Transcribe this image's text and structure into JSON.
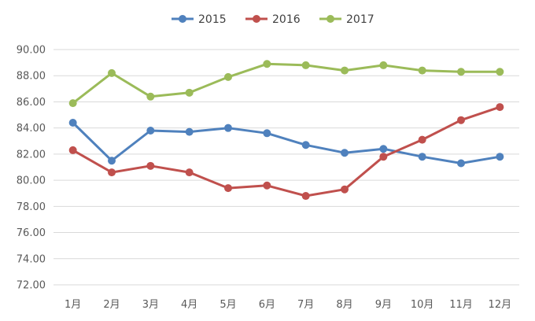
{
  "chart_data": {
    "type": "line",
    "categories": [
      "1月",
      "2月",
      "3月",
      "4月",
      "5月",
      "6月",
      "7月",
      "8月",
      "9月",
      "10月",
      "11月",
      "12月"
    ],
    "series": [
      {
        "name": "2015",
        "color": "#4f81bd",
        "values": [
          84.4,
          81.5,
          83.8,
          83.7,
          84.0,
          83.6,
          82.7,
          82.1,
          82.4,
          81.8,
          81.3,
          81.8
        ]
      },
      {
        "name": "2016",
        "color": "#c0504d",
        "values": [
          82.3,
          80.6,
          81.1,
          80.6,
          79.4,
          79.6,
          78.8,
          79.3,
          81.8,
          83.1,
          84.6,
          85.6
        ]
      },
      {
        "name": "2017",
        "color": "#9bbb59",
        "values": [
          85.9,
          88.2,
          86.4,
          86.7,
          87.9,
          88.9,
          88.8,
          88.4,
          88.8,
          88.4,
          88.3,
          88.3
        ]
      }
    ],
    "yticks": [
      "72.00",
      "74.00",
      "76.00",
      "78.00",
      "80.00",
      "82.00",
      "84.00",
      "86.00",
      "88.00",
      "90.00"
    ],
    "ylim": [
      72,
      90
    ],
    "grid": true,
    "legend_position": "top-center",
    "title": "",
    "xlabel": "",
    "ylabel": ""
  }
}
